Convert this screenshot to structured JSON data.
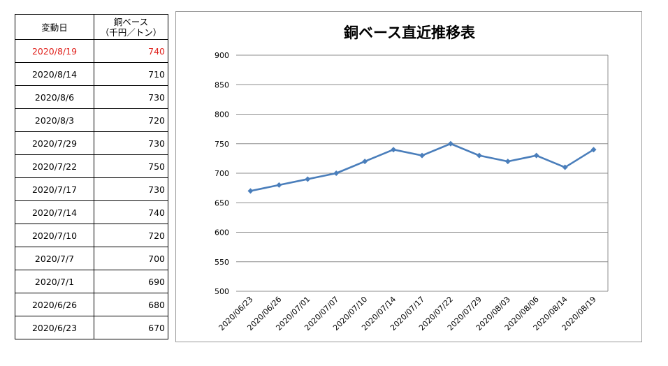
{
  "table": {
    "header": {
      "date": "変動日",
      "price_line1": "銅ベース",
      "price_line2": "（千円／トン）"
    },
    "rows": [
      {
        "date": "2020/8/19",
        "price": "740",
        "highlight": true
      },
      {
        "date": "2020/8/14",
        "price": "710"
      },
      {
        "date": "2020/8/6",
        "price": "730"
      },
      {
        "date": "2020/8/3",
        "price": "720"
      },
      {
        "date": "2020/7/29",
        "price": "730"
      },
      {
        "date": "2020/7/22",
        "price": "750"
      },
      {
        "date": "2020/7/17",
        "price": "730"
      },
      {
        "date": "2020/7/14",
        "price": "740"
      },
      {
        "date": "2020/7/10",
        "price": "720"
      },
      {
        "date": "2020/7/7",
        "price": "700"
      },
      {
        "date": "2020/7/1",
        "price": "690"
      },
      {
        "date": "2020/6/26",
        "price": "680"
      },
      {
        "date": "2020/6/23",
        "price": "670"
      }
    ],
    "highlight_color": "#e0201b"
  },
  "chart_data": {
    "type": "line",
    "title": "銅ベース直近推移表",
    "xlabel": "",
    "ylabel": "",
    "categories": [
      "2020/06/23",
      "2020/06/26",
      "2020/07/01",
      "2020/07/07",
      "2020/07/10",
      "2020/07/14",
      "2020/07/17",
      "2020/07/22",
      "2020/07/29",
      "2020/08/03",
      "2020/08/06",
      "2020/08/14",
      "2020/08/19"
    ],
    "series": [
      {
        "values": [
          670,
          680,
          690,
          700,
          720,
          740,
          730,
          750,
          730,
          720,
          730,
          710,
          740
        ],
        "color": "#4a7ebb",
        "marker": "diamond"
      }
    ],
    "ylim": [
      500,
      900
    ],
    "yticks": [
      500,
      550,
      600,
      650,
      700,
      750,
      800,
      850,
      900
    ],
    "grid": true,
    "legend": "none"
  }
}
